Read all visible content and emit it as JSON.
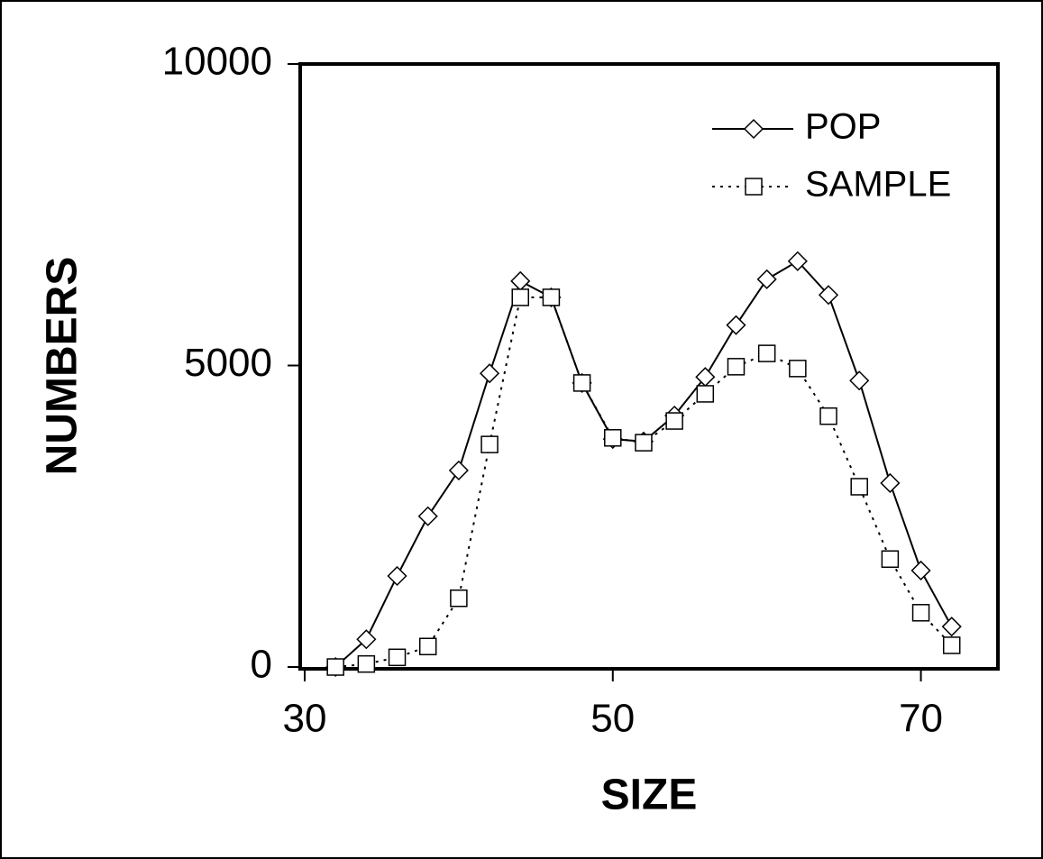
{
  "chart_data": {
    "type": "line",
    "x_label": "SIZE",
    "y_label": "NUMBERS",
    "xlim": [
      30,
      75
    ],
    "ylim": [
      0,
      10000
    ],
    "xticks": [
      30,
      50,
      70
    ],
    "yticks": [
      0,
      5000,
      10000
    ],
    "grid": false,
    "legend": "upper right",
    "series": [
      {
        "name": "POP",
        "color": "#000000",
        "line": "solid",
        "marker": "diamond",
        "x": [
          32,
          34,
          36,
          38,
          40,
          42,
          44,
          46,
          48,
          50,
          52,
          54,
          56,
          58,
          60,
          62,
          64,
          66,
          68,
          70,
          72
        ],
        "values": [
          0,
          460,
          1510,
          2500,
          3260,
          4870,
          6400,
          6130,
          4710,
          3780,
          3740,
          4170,
          4810,
          5670,
          6430,
          6730,
          6170,
          4750,
          3050,
          1600,
          670
        ]
      },
      {
        "name": "SAMPLE",
        "color": "#000000",
        "line": "dotted",
        "marker": "square",
        "x": [
          32,
          34,
          36,
          38,
          40,
          42,
          44,
          46,
          48,
          50,
          52,
          54,
          56,
          58,
          60,
          62,
          64,
          66,
          68,
          70,
          72
        ],
        "values": [
          0,
          50,
          160,
          340,
          1140,
          3690,
          6130,
          6130,
          4710,
          3800,
          3720,
          4080,
          4530,
          4980,
          5200,
          4950,
          4160,
          2990,
          1790,
          900,
          360
        ]
      }
    ]
  }
}
